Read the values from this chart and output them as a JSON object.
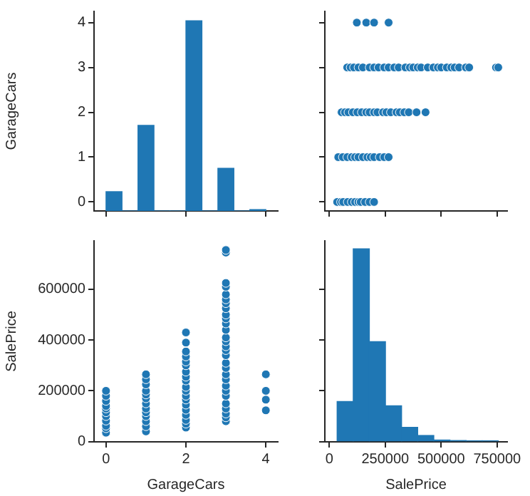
{
  "chart_data": [
    {
      "type": "histogram",
      "ylabel": "GarageCars",
      "color": "#1f77b4",
      "bins": [
        0,
        0.4,
        0.8,
        1.2,
        1.6,
        2.0,
        2.4,
        2.8,
        3.2,
        3.6,
        4.0
      ],
      "values": [
        0.43,
        0,
        1.91,
        0,
        0,
        4.24,
        0,
        0.95,
        0,
        0.03
      ],
      "base": [
        -0.2,
        -0.2,
        -0.2,
        -0.2,
        -0.2,
        -0.2,
        -0.2,
        -0.2,
        -0.2,
        -0.2
      ],
      "xlim": [
        -0.3,
        4.3
      ],
      "xticks": [
        0,
        2,
        4
      ],
      "ylim": [
        -0.2,
        4.25
      ],
      "yticks": [
        0,
        1,
        2,
        3,
        4
      ],
      "tick_labels": "y"
    },
    {
      "type": "scatter",
      "color": "#1f77b4",
      "marker": "circle",
      "x": [
        35000,
        52000,
        62000,
        82000,
        100000,
        115000,
        130000,
        140000,
        160000,
        180000,
        200000,
        40000,
        60000,
        80000,
        100000,
        115000,
        130000,
        150000,
        170000,
        185000,
        200000,
        225000,
        245000,
        265000,
        55000,
        70000,
        85000,
        105000,
        125000,
        145000,
        165000,
        180000,
        200000,
        215000,
        240000,
        255000,
        275000,
        300000,
        315000,
        335000,
        355000,
        390000,
        430000,
        80000,
        95000,
        110000,
        130000,
        150000,
        180000,
        200000,
        220000,
        245000,
        265000,
        290000,
        310000,
        340000,
        360000,
        375000,
        395000,
        410000,
        440000,
        465000,
        485000,
        500000,
        525000,
        545000,
        560000,
        580000,
        610000,
        625000,
        745000,
        755000,
        123000,
        165000,
        200000,
        265000
      ],
      "values": [
        0,
        0,
        0,
        0,
        0,
        0,
        0,
        0,
        0,
        0,
        0,
        1,
        1,
        1,
        1,
        1,
        1,
        1,
        1,
        1,
        1,
        1,
        1,
        1,
        2,
        2,
        2,
        2,
        2,
        2,
        2,
        2,
        2,
        2,
        2,
        2,
        2,
        2,
        2,
        2,
        2,
        2,
        2,
        3,
        3,
        3,
        3,
        3,
        3,
        3,
        3,
        3,
        3,
        3,
        3,
        3,
        3,
        3,
        3,
        3,
        3,
        3,
        3,
        3,
        3,
        3,
        3,
        3,
        3,
        3,
        3,
        3,
        4,
        4,
        4,
        4
      ],
      "xlim": [
        -20000,
        795000
      ],
      "xticks": [
        0,
        250000,
        500000,
        750000
      ],
      "ylim": [
        -0.2,
        4.25
      ],
      "yticks": [
        0,
        1,
        2,
        3,
        4
      ],
      "tick_labels": false
    },
    {
      "type": "scatter",
      "xlabel": "GarageCars",
      "ylabel": "SalePrice",
      "color": "#1f77b4",
      "marker": "circle",
      "x": [
        0,
        0,
        0,
        0,
        0,
        0,
        0,
        0,
        0,
        0,
        0,
        1,
        1,
        1,
        1,
        1,
        1,
        1,
        1,
        1,
        1,
        1,
        1,
        1,
        2,
        2,
        2,
        2,
        2,
        2,
        2,
        2,
        2,
        2,
        2,
        2,
        2,
        2,
        2,
        2,
        2,
        2,
        2,
        3,
        3,
        3,
        3,
        3,
        3,
        3,
        3,
        3,
        3,
        3,
        3,
        3,
        3,
        3,
        3,
        3,
        3,
        3,
        3,
        3,
        3,
        3,
        3,
        3,
        3,
        3,
        3,
        3,
        4,
        4,
        4,
        4
      ],
      "values": [
        35000,
        52000,
        62000,
        82000,
        100000,
        115000,
        130000,
        140000,
        160000,
        180000,
        200000,
        40000,
        60000,
        80000,
        100000,
        115000,
        130000,
        150000,
        170000,
        185000,
        200000,
        225000,
        245000,
        265000,
        55000,
        70000,
        85000,
        105000,
        125000,
        145000,
        165000,
        180000,
        200000,
        215000,
        240000,
        255000,
        275000,
        300000,
        315000,
        335000,
        355000,
        390000,
        430000,
        80000,
        95000,
        110000,
        130000,
        150000,
        180000,
        200000,
        220000,
        245000,
        265000,
        290000,
        310000,
        340000,
        360000,
        375000,
        395000,
        410000,
        440000,
        465000,
        485000,
        500000,
        525000,
        545000,
        560000,
        580000,
        610000,
        625000,
        745000,
        755000,
        123000,
        165000,
        200000,
        265000
      ],
      "xlim": [
        -0.3,
        4.3
      ],
      "xticks": [
        0,
        2,
        4
      ],
      "ylim": [
        -1100,
        791000
      ],
      "yticks": [
        0,
        200000,
        400000,
        600000
      ]
    },
    {
      "type": "histogram",
      "xlabel": "SalePrice",
      "color": "#1f77b4",
      "bins": [
        34900,
        106910,
        178920,
        250930,
        322940,
        394950,
        466960,
        538970,
        610980,
        682990,
        755000
      ],
      "values": [
        158000,
        760000,
        394000,
        141000,
        56000,
        24000,
        6000,
        4000,
        3000,
        3000
      ],
      "xlim": [
        -20000,
        795000
      ],
      "xticks": [
        0,
        250000,
        500000,
        750000
      ],
      "ylim": [
        -1100,
        791000
      ],
      "yticks": [
        0,
        200000,
        400000,
        600000
      ],
      "tick_labels": "x"
    }
  ]
}
